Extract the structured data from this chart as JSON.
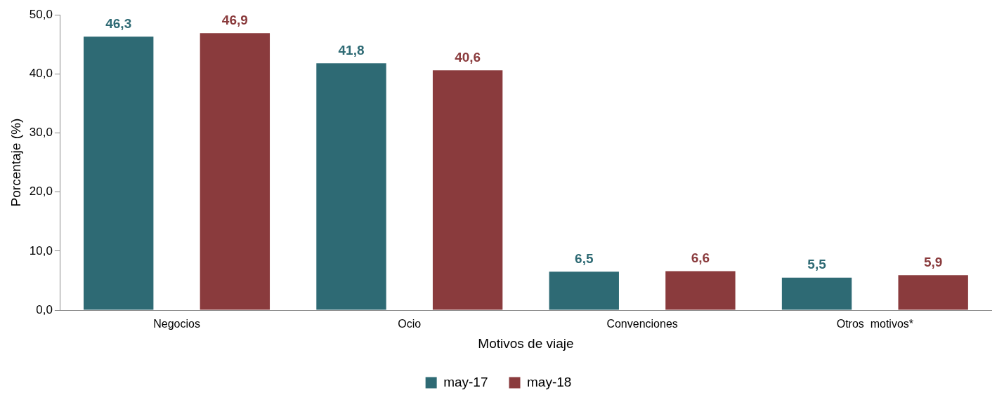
{
  "chart_data": {
    "type": "bar",
    "xlabel": "Motivos de viaje",
    "ylabel": "Porcentaje (%)",
    "categories": [
      "Negocios",
      "Ocio",
      "Convenciones",
      "Otros  motivos*"
    ],
    "series": [
      {
        "name": "may-17",
        "color": "#2e6a74",
        "values": [
          46.3,
          41.8,
          6.5,
          5.5
        ],
        "value_labels": [
          "46,3",
          "41,8",
          "6,5",
          "5,5"
        ]
      },
      {
        "name": "may-18",
        "color": "#8a3b3d",
        "values": [
          46.9,
          40.6,
          6.6,
          5.9
        ],
        "value_labels": [
          "46,9",
          "40,6",
          "6,6",
          "5,9"
        ]
      }
    ],
    "ylim": [
      0,
      50
    ],
    "yticks": [
      {
        "value": 0,
        "label": "0,0"
      },
      {
        "value": 10,
        "label": "10,0"
      },
      {
        "value": 20,
        "label": "20,0"
      },
      {
        "value": 30,
        "label": "30,0"
      },
      {
        "value": 40,
        "label": "40,0"
      },
      {
        "value": 50,
        "label": "50,0"
      }
    ],
    "grid": false,
    "legend": "bottom"
  }
}
